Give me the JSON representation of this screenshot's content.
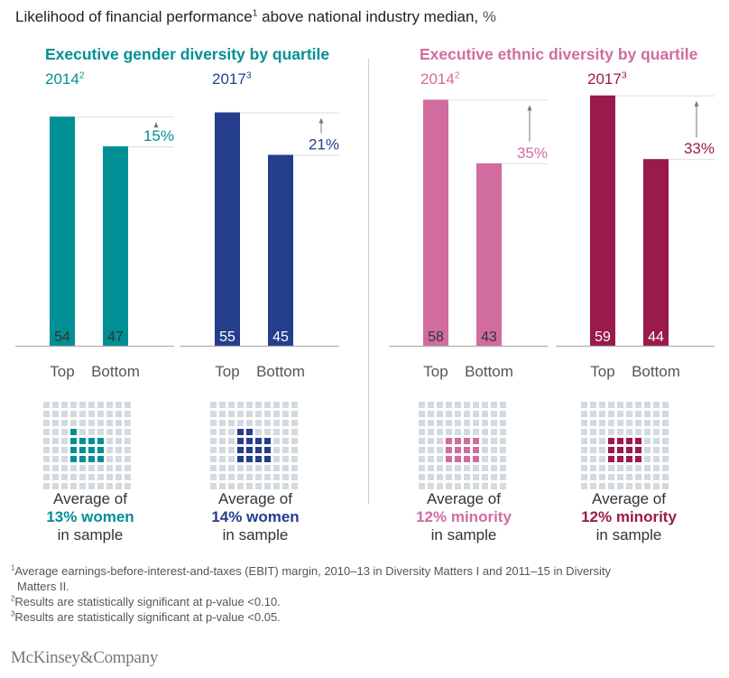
{
  "title": {
    "text": "Likelihood of financial performance",
    "sup": "1",
    "rest": " above national industry median, ",
    "unit": "%"
  },
  "colors": {
    "gender_2014": "#008f95",
    "gender_2017": "#243e8c",
    "ethnic_2014": "#d16c9f",
    "ethnic_2017": "#9a1a4b",
    "grid_off": "#d3dbe1",
    "axis": "#b0b0b0",
    "ref_line": "#e3e3e3",
    "arrow": "#777777"
  },
  "groups": [
    {
      "title": "Executive gender diversity by quartile",
      "color": "#008f95"
    },
    {
      "title": "Executive ethnic diversity by quartile",
      "color": "#d16c9f"
    }
  ],
  "chart_data": {
    "type": "bar",
    "title": "Likelihood of financial performance above national industry median, %",
    "ylabel": "%",
    "categories": [
      "Top",
      "Bottom"
    ],
    "grid": false,
    "panels": [
      {
        "group": "Executive gender diversity by quartile",
        "year": "2014",
        "year_sup": "2",
        "color": "#008f95",
        "values": [
          54,
          47
        ],
        "difference": "15%",
        "label_color_top": "#333333",
        "sample_share": 13,
        "sample_text_pre": "Average of",
        "sample_highlight": "13% women",
        "sample_text_post": "in sample"
      },
      {
        "group": "Executive gender diversity by quartile",
        "year": "2017",
        "year_sup": "3",
        "color": "#243e8c",
        "values": [
          55,
          45
        ],
        "difference": "21%",
        "label_color_top": "#ffffff",
        "sample_share": 14,
        "sample_text_pre": "Average of",
        "sample_highlight": "14% women",
        "sample_text_post": "in sample"
      },
      {
        "group": "Executive ethnic diversity by quartile",
        "year": "2014",
        "year_sup": "2",
        "color": "#d16c9f",
        "values": [
          58,
          43
        ],
        "difference": "35%",
        "label_color_top": "#333333",
        "sample_share": 12,
        "sample_text_pre": "Average of",
        "sample_highlight": "12% minority",
        "sample_text_post": "in sample"
      },
      {
        "group": "Executive ethnic diversity by quartile",
        "year": "2017",
        "year_sup": "3",
        "color": "#9a1a4b",
        "values": [
          59,
          44
        ],
        "difference": "33%",
        "label_color_top": "#ffffff",
        "sample_share": 12,
        "sample_text_pre": "Average of",
        "sample_highlight": "12% minority",
        "sample_text_post": "in sample"
      }
    ],
    "waffle": {
      "rows": 10,
      "cols": 10,
      "highlighted_cells": [
        [
          [
            3,
            3
          ],
          [
            4,
            3
          ],
          [
            4,
            4
          ],
          [
            4,
            5
          ],
          [
            4,
            6
          ],
          [
            5,
            3
          ],
          [
            5,
            4
          ],
          [
            5,
            5
          ],
          [
            5,
            6
          ],
          [
            6,
            3
          ],
          [
            6,
            4
          ],
          [
            6,
            5
          ],
          [
            6,
            6
          ]
        ],
        [
          [
            3,
            3
          ],
          [
            3,
            4
          ],
          [
            4,
            3
          ],
          [
            4,
            4
          ],
          [
            4,
            5
          ],
          [
            4,
            6
          ],
          [
            5,
            3
          ],
          [
            5,
            4
          ],
          [
            5,
            5
          ],
          [
            5,
            6
          ],
          [
            6,
            3
          ],
          [
            6,
            4
          ],
          [
            6,
            5
          ],
          [
            6,
            6
          ]
        ],
        [
          [
            4,
            3
          ],
          [
            4,
            4
          ],
          [
            4,
            5
          ],
          [
            4,
            6
          ],
          [
            5,
            3
          ],
          [
            5,
            4
          ],
          [
            5,
            5
          ],
          [
            5,
            6
          ],
          [
            6,
            3
          ],
          [
            6,
            4
          ],
          [
            6,
            5
          ],
          [
            6,
            6
          ]
        ],
        [
          [
            4,
            3
          ],
          [
            4,
            4
          ],
          [
            4,
            5
          ],
          [
            4,
            6
          ],
          [
            5,
            3
          ],
          [
            5,
            4
          ],
          [
            5,
            5
          ],
          [
            5,
            6
          ],
          [
            6,
            3
          ],
          [
            6,
            4
          ],
          [
            6,
            5
          ],
          [
            6,
            6
          ]
        ]
      ]
    }
  },
  "footnotes": [
    {
      "sup": "1",
      "text": "Average earnings-before-interest-and-taxes (EBIT) margin, 2010–13 in Diversity Matters I and 2011–15 in Diversity",
      "cont": "Matters II."
    },
    {
      "sup": "2",
      "text": "Results are statistically significant at p-value <0.10."
    },
    {
      "sup": "3",
      "text": "Results are statistically significant at p-value <0.05."
    }
  ],
  "logo": "McKinsey&Company"
}
